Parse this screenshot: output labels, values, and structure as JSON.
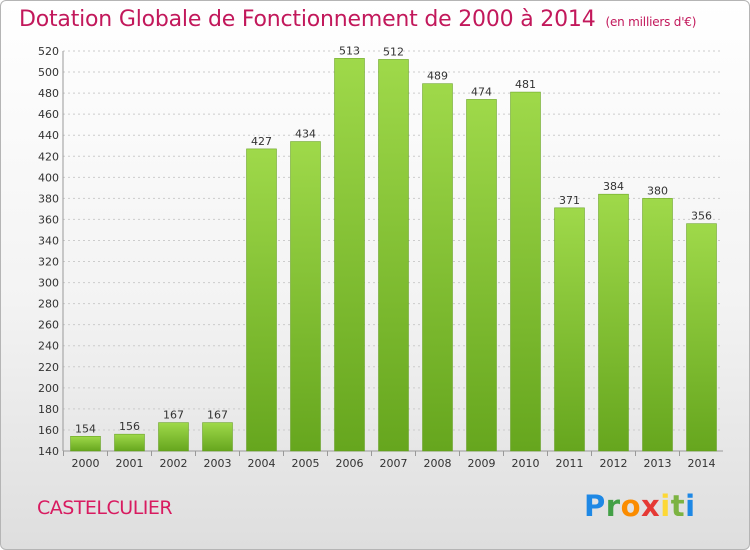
{
  "title": "Dotation Globale de Fonctionnement de 2000 à 2014",
  "subtitle": "(en milliers d'€)",
  "commune": "CASTELCULIER",
  "logo": "Proxiti",
  "colors": {
    "bar": "#7fbf2c",
    "bar_top": "#9fd94a",
    "title": "#c2185b",
    "grid": "#cccccc"
  },
  "chart_data": {
    "type": "bar",
    "title": "Dotation Globale de Fonctionnement de 2000 à 2014",
    "subtitle": "(en milliers d'€)",
    "categories": [
      "2000",
      "2001",
      "2002",
      "2003",
      "2004",
      "2005",
      "2006",
      "2007",
      "2008",
      "2009",
      "2010",
      "2011",
      "2012",
      "2013",
      "2014"
    ],
    "values": [
      154,
      156,
      167,
      167,
      427,
      434,
      513,
      512,
      489,
      474,
      481,
      371,
      384,
      380,
      356
    ],
    "ylim": [
      140,
      520
    ],
    "yticks": [
      140,
      160,
      180,
      200,
      220,
      240,
      260,
      280,
      300,
      320,
      340,
      360,
      380,
      400,
      420,
      440,
      460,
      480,
      500,
      520
    ],
    "grid": true,
    "legend": "none"
  }
}
